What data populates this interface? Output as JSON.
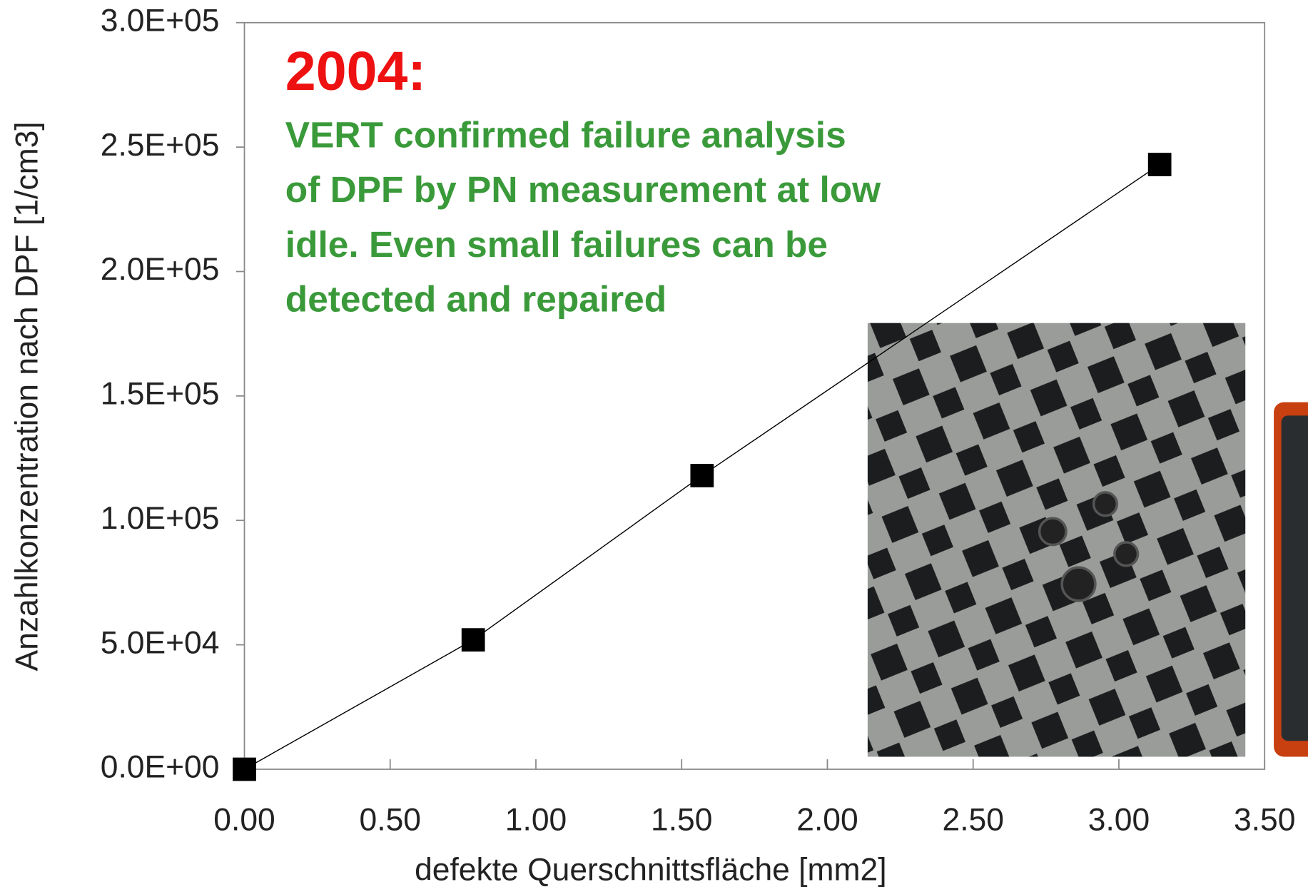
{
  "chart_data": {
    "type": "line",
    "x_label": "defekte Querschnittsfläche [mm2]",
    "y_label": "Anzahlkonzentration nach DPF [1/cm3]",
    "annotations": {
      "year": "2004:",
      "text_lines": [
        "VERT confirmed failure analysis",
        "of DPF by PN measurement at low",
        "idle. Even small failures can be",
        "detected and repaired"
      ]
    },
    "x": [
      0,
      0.785,
      1.57,
      3.14
    ],
    "series": [
      {
        "values": [
          0,
          52000,
          118000,
          243000
        ],
        "color": "#000000"
      }
    ],
    "xlim": [
      0,
      3.5
    ],
    "xticks": [
      {
        "value": 0,
        "label": "0.00"
      },
      {
        "value": 0.5,
        "label": "0.50"
      },
      {
        "value": 1,
        "label": "1.00"
      },
      {
        "value": 1.5,
        "label": "1.50"
      },
      {
        "value": 2,
        "label": "2.00"
      },
      {
        "value": 2.5,
        "label": "2.50"
      },
      {
        "value": 3,
        "label": "3.00"
      },
      {
        "value": 3.5,
        "label": "3.50"
      }
    ],
    "ylim": [
      0,
      300000
    ],
    "yticks": [
      {
        "value": 0,
        "label": "0.0E+00"
      },
      {
        "value": 50000,
        "label": "5.0E+04"
      },
      {
        "value": 100000,
        "label": "1.0E+05"
      },
      {
        "value": 150000,
        "label": "1.5E+05"
      },
      {
        "value": 200000,
        "label": "2.0E+05"
      },
      {
        "value": 250000,
        "label": "2.5E+05"
      },
      {
        "value": 300000,
        "label": "3.0E+05"
      }
    ]
  }
}
